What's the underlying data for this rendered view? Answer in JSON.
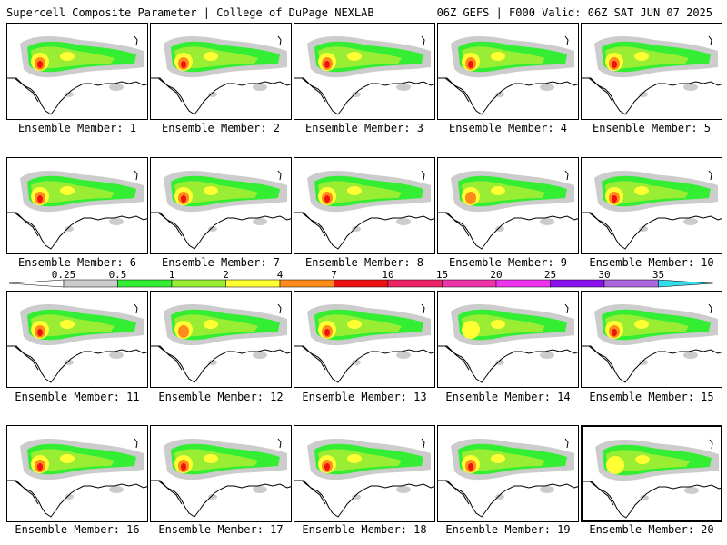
{
  "header": {
    "left": "Supercell Composite Parameter | College of DuPage NEXLAB",
    "right": "06Z GEFS | F000 Valid: 06Z SAT JUN 07 2025"
  },
  "members": [
    {
      "label": "Ensemble Member: 1",
      "peak": "red"
    },
    {
      "label": "Ensemble Member: 2",
      "peak": "red"
    },
    {
      "label": "Ensemble Member: 3",
      "peak": "red"
    },
    {
      "label": "Ensemble Member: 4",
      "peak": "red"
    },
    {
      "label": "Ensemble Member: 5",
      "peak": "red"
    },
    {
      "label": "Ensemble Member: 6",
      "peak": "red"
    },
    {
      "label": "Ensemble Member: 7",
      "peak": "red"
    },
    {
      "label": "Ensemble Member: 8",
      "peak": "red"
    },
    {
      "label": "Ensemble Member: 9",
      "peak": "orange"
    },
    {
      "label": "Ensemble Member: 10",
      "peak": "red"
    },
    {
      "label": "Ensemble Member: 11",
      "peak": "red"
    },
    {
      "label": "Ensemble Member: 12",
      "peak": "orange"
    },
    {
      "label": "Ensemble Member: 13",
      "peak": "red"
    },
    {
      "label": "Ensemble Member: 14",
      "peak": "yellow"
    },
    {
      "label": "Ensemble Member: 15",
      "peak": "red"
    },
    {
      "label": "Ensemble Member: 16",
      "peak": "red"
    },
    {
      "label": "Ensemble Member: 17",
      "peak": "red"
    },
    {
      "label": "Ensemble Member: 18",
      "peak": "red"
    },
    {
      "label": "Ensemble Member: 19",
      "peak": "red"
    },
    {
      "label": "Ensemble Member: 20",
      "peak": "yellow"
    }
  ],
  "selected_member": 20,
  "colorbar": {
    "labels": [
      "0.25",
      "0.5",
      "1",
      "2",
      "4",
      "7",
      "10",
      "15",
      "20",
      "25",
      "30",
      "35"
    ],
    "colors": [
      "#cccccc",
      "#33ee33",
      "#99ee33",
      "#ffff33",
      "#ff8c1a",
      "#ee1111",
      "#ee2266",
      "#ee33aa",
      "#ee33ee",
      "#8811ee",
      "#aa66dd",
      "#33ddee"
    ]
  }
}
